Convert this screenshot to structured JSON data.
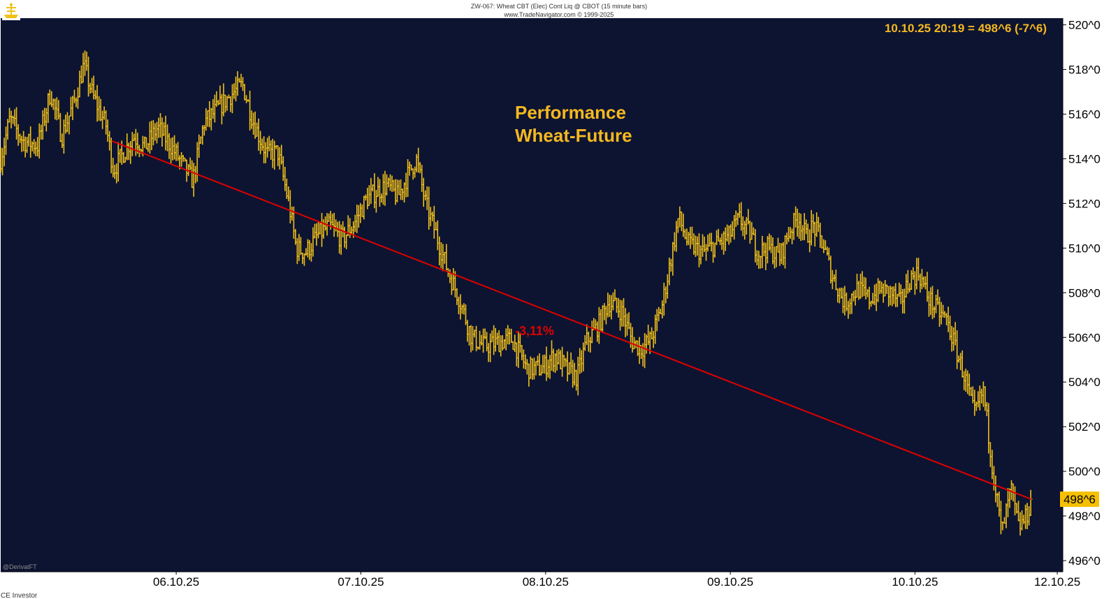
{
  "header": {
    "line1": "ZW-067:  Wheat CBT (Elec) Cont Liq @ CBOT  (15 minute bars)",
    "line2": "www.TradeNavigator.com © 1999-2025"
  },
  "chart_data": {
    "type": "bar",
    "bar_style": "OHLC",
    "title": "Performance",
    "subtitle": "Wheat-Future",
    "last_quote": "10.10.25 20:19 = 498^6 (-7^6)",
    "price_label": "498^6",
    "last_price": 498.75,
    "annotation": "-3,11%",
    "ylim": [
      495.5,
      520.3
    ],
    "xlim": [
      0,
      5.75
    ],
    "y_ticks": [
      {
        "value": 520,
        "label": "520^0"
      },
      {
        "value": 518,
        "label": "518^0"
      },
      {
        "value": 516,
        "label": "516^0"
      },
      {
        "value": 514,
        "label": "514^0"
      },
      {
        "value": 512,
        "label": "512^0"
      },
      {
        "value": 510,
        "label": "510^0"
      },
      {
        "value": 508,
        "label": "508^0"
      },
      {
        "value": 506,
        "label": "506^0"
      },
      {
        "value": 504,
        "label": "504^0"
      },
      {
        "value": 502,
        "label": "502^0"
      },
      {
        "value": 500,
        "label": "500^0"
      },
      {
        "value": 498,
        "label": "498^0"
      },
      {
        "value": 496,
        "label": "496^0"
      }
    ],
    "x_ticks": [
      {
        "value": 0.95,
        "label": "06.10.25"
      },
      {
        "value": 1.95,
        "label": "07.10.25"
      },
      {
        "value": 2.95,
        "label": "08.10.25"
      },
      {
        "value": 3.95,
        "label": "09.10.25"
      },
      {
        "value": 4.95,
        "label": "10.10.25"
      },
      {
        "value": 5.72,
        "label": "12.10.25"
      }
    ],
    "path_points": [
      [
        0.0,
        514.0
      ],
      [
        0.05,
        515.8
      ],
      [
        0.12,
        514.8
      ],
      [
        0.2,
        514.6
      ],
      [
        0.27,
        517.0
      ],
      [
        0.33,
        515.0
      ],
      [
        0.4,
        516.6
      ],
      [
        0.45,
        518.2
      ],
      [
        0.5,
        516.8
      ],
      [
        0.57,
        515.5
      ],
      [
        0.61,
        513.5
      ],
      [
        0.66,
        514.2
      ],
      [
        0.72,
        515.0
      ],
      [
        0.78,
        514.5
      ],
      [
        0.85,
        515.4
      ],
      [
        0.92,
        514.6
      ],
      [
        0.98,
        513.8
      ],
      [
        1.04,
        513.0
      ],
      [
        1.1,
        515.6
      ],
      [
        1.17,
        516.2
      ],
      [
        1.25,
        516.9
      ],
      [
        1.31,
        517.3
      ],
      [
        1.37,
        515.6
      ],
      [
        1.44,
        514.2
      ],
      [
        1.5,
        514.3
      ],
      [
        1.56,
        512.0
      ],
      [
        1.6,
        510.0
      ],
      [
        1.65,
        509.8
      ],
      [
        1.72,
        510.6
      ],
      [
        1.78,
        511.0
      ],
      [
        1.85,
        510.4
      ],
      [
        1.92,
        511.2
      ],
      [
        1.98,
        512.2
      ],
      [
        2.03,
        512.5
      ],
      [
        2.09,
        512.8
      ],
      [
        2.15,
        512.3
      ],
      [
        2.2,
        513.2
      ],
      [
        2.25,
        514.0
      ],
      [
        2.3,
        512.0
      ],
      [
        2.35,
        510.8
      ],
      [
        2.42,
        509.0
      ],
      [
        2.48,
        507.8
      ],
      [
        2.55,
        506.0
      ],
      [
        2.62,
        505.6
      ],
      [
        2.7,
        505.8
      ],
      [
        2.77,
        505.9
      ],
      [
        2.85,
        504.6
      ],
      [
        2.93,
        504.6
      ],
      [
        3.0,
        505.2
      ],
      [
        3.07,
        504.5
      ],
      [
        3.12,
        504.2
      ],
      [
        3.17,
        505.8
      ],
      [
        3.24,
        506.6
      ],
      [
        3.29,
        507.6
      ],
      [
        3.36,
        507.2
      ],
      [
        3.42,
        505.8
      ],
      [
        3.47,
        505.5
      ],
      [
        3.52,
        505.9
      ],
      [
        3.58,
        507.4
      ],
      [
        3.63,
        509.6
      ],
      [
        3.67,
        511.4
      ],
      [
        3.72,
        510.2
      ],
      [
        3.8,
        509.8
      ],
      [
        3.88,
        510.2
      ],
      [
        3.94,
        510.5
      ],
      [
        4.0,
        511.3
      ],
      [
        4.06,
        510.6
      ],
      [
        4.1,
        509.8
      ],
      [
        4.15,
        510.0
      ],
      [
        4.22,
        509.6
      ],
      [
        4.27,
        510.8
      ],
      [
        4.32,
        511.4
      ],
      [
        4.36,
        510.5
      ],
      [
        4.4,
        511.0
      ],
      [
        4.45,
        510.2
      ],
      [
        4.5,
        508.8
      ],
      [
        4.57,
        507.5
      ],
      [
        4.64,
        508.2
      ],
      [
        4.7,
        507.7
      ],
      [
        4.76,
        508.1
      ],
      [
        4.82,
        508.0
      ],
      [
        4.87,
        507.5
      ],
      [
        4.92,
        508.6
      ],
      [
        4.97,
        508.9
      ],
      [
        5.02,
        507.8
      ],
      [
        5.07,
        507.2
      ],
      [
        5.12,
        506.8
      ],
      [
        5.17,
        505.5
      ],
      [
        5.22,
        504.2
      ],
      [
        5.27,
        502.5
      ],
      [
        5.32,
        503.6
      ],
      [
        5.37,
        500.2
      ],
      [
        5.42,
        497.2
      ],
      [
        5.47,
        499.2
      ],
      [
        5.51,
        497.5
      ],
      [
        5.55,
        497.9
      ],
      [
        5.58,
        498.75
      ]
    ],
    "trendline": {
      "start": {
        "x": 0.6,
        "y": 514.8
      },
      "end": {
        "x": 5.58,
        "y": 498.75
      },
      "change": "-3,11%"
    }
  },
  "footer": {
    "watermark": "@DerivatFT",
    "brand": "CE Investor"
  },
  "colors": {
    "plot_bg": "#0d1431",
    "page_bg": "#ffffff",
    "bars": "#f0c01a",
    "accent": "#f5b820",
    "trendline": "#e00000",
    "axis_text": "#000000",
    "price_box_bg": "#f5c000"
  },
  "icons": {
    "logo": "ship-logo-icon"
  }
}
